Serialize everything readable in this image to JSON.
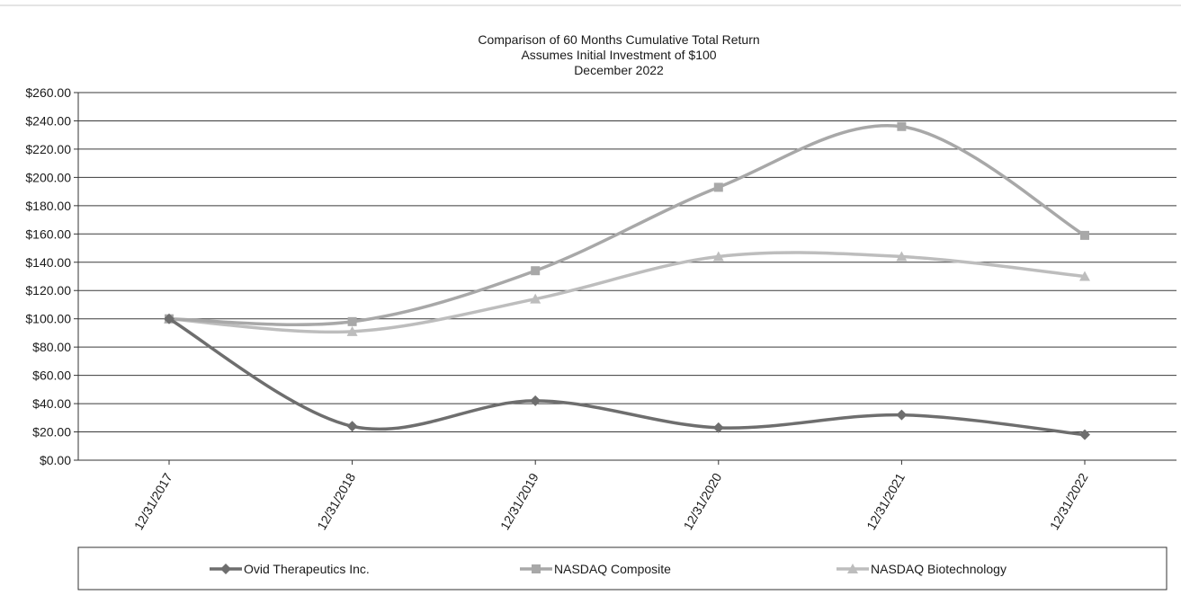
{
  "chart_data": {
    "type": "line",
    "title": "Comparison of 60 Months Cumulative Total Return",
    "subtitle": [
      "Assumes Initial Investment of $100",
      "December 2022"
    ],
    "xlabel": "",
    "ylabel": "",
    "categories": [
      "12/31/2017",
      "12/31/2018",
      "12/31/2019",
      "12/31/2020",
      "12/31/2021",
      "12/31/2022"
    ],
    "ylim": [
      0,
      260
    ],
    "yticks": [
      0,
      20,
      40,
      60,
      80,
      100,
      120,
      140,
      160,
      180,
      200,
      220,
      240,
      260
    ],
    "ytick_labels": [
      "$0.00",
      "$20.00",
      "$40.00",
      "$60.00",
      "$80.00",
      "$100.00",
      "$120.00",
      "$140.00",
      "$160.00",
      "$180.00",
      "$200.00",
      "$220.00",
      "$240.00",
      "$260.00"
    ],
    "grid": true,
    "legend_position": "bottom",
    "series": [
      {
        "name": "Ovid Therapeutics Inc.",
        "marker": "diamond",
        "color": "#6e6e6e",
        "values": [
          100,
          24,
          42,
          23,
          32,
          18
        ]
      },
      {
        "name": "NASDAQ Composite",
        "marker": "square",
        "color": "#a8a8a8",
        "values": [
          100,
          98,
          134,
          193,
          236,
          159
        ]
      },
      {
        "name": "NASDAQ Biotechnology",
        "marker": "triangle",
        "color": "#bdbdbd",
        "values": [
          100,
          91,
          114,
          144,
          144,
          130
        ]
      }
    ]
  }
}
